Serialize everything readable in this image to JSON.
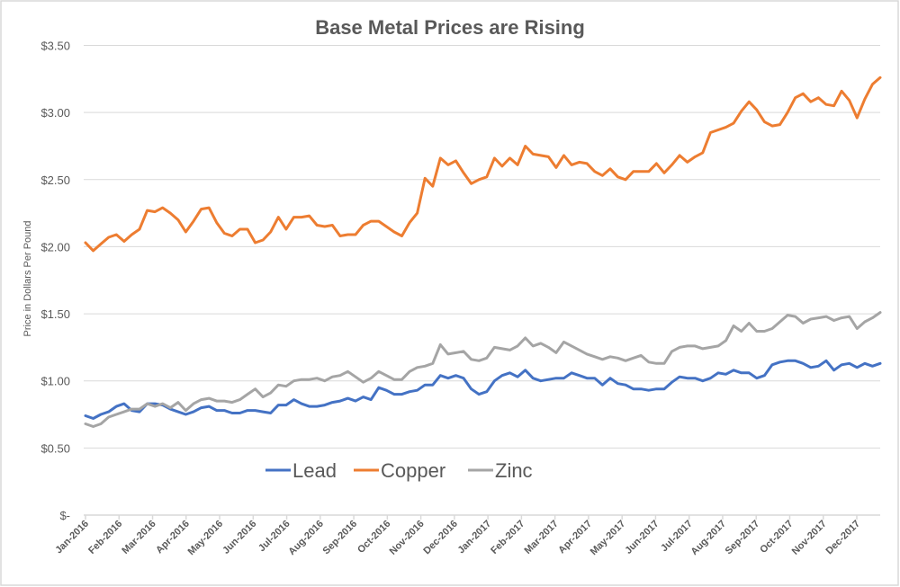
{
  "chart_data": {
    "type": "line",
    "title": "Base Metal Prices are Rising",
    "xlabel": "",
    "ylabel": "Price in Dollars Per Pound",
    "ylim": [
      0,
      3.5
    ],
    "yticks": [
      0,
      0.5,
      1.0,
      1.5,
      2.0,
      2.5,
      3.0,
      3.5
    ],
    "ytick_labels": [
      "$-",
      "$0.50",
      "$1.00",
      "$1.50",
      "$2.00",
      "$2.50",
      "$3.00",
      "$3.50"
    ],
    "x_tick_labels": [
      "Jan-2016",
      "Feb-2016",
      "Mar-2016",
      "Apr-2016",
      "May-2016",
      "Jun-2016",
      "Jul-2016",
      "Aug-2016",
      "Sep-2016",
      "Oct-2016",
      "Nov-2016",
      "Dec-2016",
      "Jan-2017",
      "Feb-2017",
      "Mar-2017",
      "Apr-2017",
      "May-2017",
      "Jun-2017",
      "Jul-2017",
      "Aug-2017",
      "Sep-2017",
      "Oct-2017",
      "Nov-2017",
      "Dec-2017"
    ],
    "x_frequency": "weekly",
    "grid": true,
    "legend_position": "bottom-left",
    "series": [
      {
        "name": "Lead",
        "color": "#4472C4",
        "values": [
          0.74,
          0.72,
          0.75,
          0.77,
          0.81,
          0.83,
          0.78,
          0.77,
          0.83,
          0.83,
          0.82,
          0.79,
          0.77,
          0.75,
          0.77,
          0.8,
          0.81,
          0.78,
          0.78,
          0.76,
          0.76,
          0.78,
          0.78,
          0.77,
          0.76,
          0.82,
          0.82,
          0.86,
          0.83,
          0.81,
          0.81,
          0.82,
          0.84,
          0.85,
          0.87,
          0.85,
          0.88,
          0.86,
          0.95,
          0.93,
          0.9,
          0.9,
          0.92,
          0.93,
          0.97,
          0.97,
          1.04,
          1.02,
          1.04,
          1.02,
          0.94,
          0.9,
          0.92,
          1.0,
          1.04,
          1.06,
          1.03,
          1.08,
          1.02,
          1.0,
          1.01,
          1.02,
          1.02,
          1.06,
          1.04,
          1.02,
          1.02,
          0.97,
          1.02,
          0.98,
          0.97,
          0.94,
          0.94,
          0.93,
          0.94,
          0.94,
          0.99,
          1.03,
          1.02,
          1.02,
          1.0,
          1.02,
          1.06,
          1.05,
          1.08,
          1.06,
          1.06,
          1.02,
          1.04,
          1.12,
          1.14,
          1.15,
          1.15,
          1.13,
          1.1,
          1.11,
          1.15,
          1.08,
          1.12,
          1.13,
          1.1,
          1.13,
          1.11,
          1.13
        ]
      },
      {
        "name": "Copper",
        "color": "#ED7D31",
        "values": [
          2.03,
          1.97,
          2.02,
          2.07,
          2.09,
          2.04,
          2.09,
          2.13,
          2.27,
          2.26,
          2.29,
          2.25,
          2.2,
          2.11,
          2.19,
          2.28,
          2.29,
          2.18,
          2.1,
          2.08,
          2.13,
          2.13,
          2.03,
          2.05,
          2.11,
          2.22,
          2.13,
          2.22,
          2.22,
          2.23,
          2.16,
          2.15,
          2.16,
          2.08,
          2.09,
          2.09,
          2.16,
          2.19,
          2.19,
          2.15,
          2.11,
          2.08,
          2.18,
          2.25,
          2.51,
          2.45,
          2.66,
          2.61,
          2.64,
          2.55,
          2.47,
          2.5,
          2.52,
          2.66,
          2.6,
          2.66,
          2.61,
          2.75,
          2.69,
          2.68,
          2.67,
          2.59,
          2.68,
          2.61,
          2.63,
          2.62,
          2.56,
          2.53,
          2.58,
          2.52,
          2.5,
          2.56,
          2.56,
          2.56,
          2.62,
          2.55,
          2.61,
          2.68,
          2.63,
          2.67,
          2.7,
          2.85,
          2.87,
          2.89,
          2.92,
          3.01,
          3.08,
          3.02,
          2.93,
          2.9,
          2.91,
          3.0,
          3.11,
          3.14,
          3.08,
          3.11,
          3.06,
          3.05,
          3.16,
          3.09,
          2.96,
          3.1,
          3.21,
          3.26
        ]
      },
      {
        "name": "Zinc",
        "color": "#A5A5A5",
        "values": [
          0.68,
          0.66,
          0.68,
          0.73,
          0.75,
          0.77,
          0.79,
          0.79,
          0.83,
          0.81,
          0.83,
          0.8,
          0.84,
          0.78,
          0.83,
          0.86,
          0.87,
          0.85,
          0.85,
          0.84,
          0.86,
          0.9,
          0.94,
          0.88,
          0.91,
          0.97,
          0.96,
          1.0,
          1.01,
          1.01,
          1.02,
          1.0,
          1.03,
          1.04,
          1.07,
          1.03,
          0.99,
          1.02,
          1.07,
          1.04,
          1.01,
          1.01,
          1.07,
          1.1,
          1.11,
          1.13,
          1.27,
          1.2,
          1.21,
          1.22,
          1.16,
          1.15,
          1.17,
          1.25,
          1.24,
          1.23,
          1.26,
          1.32,
          1.26,
          1.28,
          1.25,
          1.21,
          1.29,
          1.26,
          1.23,
          1.2,
          1.18,
          1.16,
          1.18,
          1.17,
          1.15,
          1.17,
          1.19,
          1.14,
          1.13,
          1.13,
          1.22,
          1.25,
          1.26,
          1.26,
          1.24,
          1.25,
          1.26,
          1.3,
          1.41,
          1.37,
          1.43,
          1.37,
          1.37,
          1.39,
          1.44,
          1.49,
          1.48,
          1.43,
          1.46,
          1.47,
          1.48,
          1.45,
          1.47,
          1.48,
          1.39,
          1.44,
          1.47,
          1.51
        ]
      }
    ]
  }
}
